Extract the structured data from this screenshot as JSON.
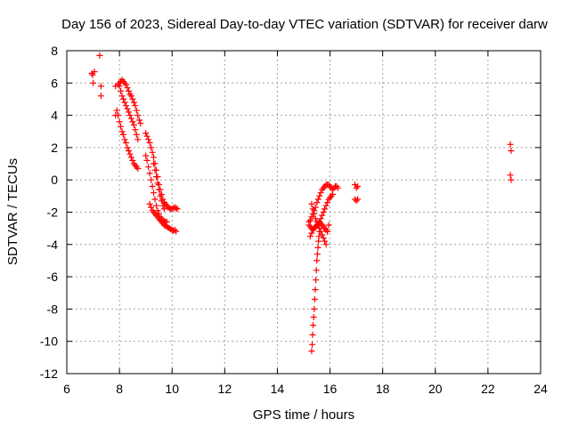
{
  "chart_data": {
    "type": "scatter",
    "title": "Day 156 of 2023, Sidereal Day-to-day VTEC variation (SDTVAR) for receiver darw",
    "xlabel": "GPS time / hours",
    "ylabel": "SDTVAR / TECUs",
    "xlim": [
      6,
      24
    ],
    "ylim": [
      -12,
      8
    ],
    "xticks": [
      "6",
      "8",
      "10",
      "12",
      "14",
      "16",
      "18",
      "20",
      "22",
      "24"
    ],
    "yticks": [
      "-12",
      "-10",
      "-8",
      "-6",
      "-4",
      "-2",
      "0",
      "2",
      "4",
      "6",
      "8"
    ],
    "grid": true,
    "marker": "+",
    "color": "#ff0000",
    "series": [
      {
        "name": "SDTVAR",
        "x": [
          6.95,
          6.98,
          7.0,
          7.05,
          7.25,
          7.3,
          7.3,
          7.85,
          7.95,
          8.0,
          8.05,
          8.1,
          8.15,
          8.2,
          8.25,
          8.3,
          8.35,
          8.4,
          8.45,
          8.5,
          8.55,
          8.6,
          8.65,
          8.7,
          8.75,
          8.8,
          7.85,
          7.9,
          7.95,
          8.0,
          8.05,
          8.1,
          8.15,
          8.2,
          8.25,
          8.3,
          8.35,
          8.4,
          8.45,
          8.5,
          8.55,
          8.6,
          8.65,
          8.7,
          8.0,
          8.05,
          8.1,
          8.15,
          8.2,
          8.25,
          8.3,
          8.35,
          8.4,
          8.45,
          8.5,
          8.55,
          8.6,
          8.65,
          8.7,
          9.0,
          9.05,
          9.1,
          9.15,
          9.2,
          9.25,
          9.3,
          9.35,
          9.4,
          9.45,
          9.5,
          9.55,
          9.6,
          9.65,
          9.7,
          9.75,
          9.8,
          9.85,
          9.9,
          9.95,
          10.0,
          10.05,
          10.1,
          10.15,
          10.2,
          9.0,
          9.05,
          9.1,
          9.15,
          9.2,
          9.25,
          9.3,
          9.35,
          9.4,
          9.45,
          9.5,
          9.55,
          9.6,
          9.65,
          9.7,
          9.75,
          9.8,
          9.15,
          9.2,
          9.25,
          9.3,
          9.35,
          9.4,
          9.45,
          9.5,
          9.55,
          9.6,
          9.65,
          9.7,
          9.75,
          9.8,
          9.85,
          9.9,
          9.95,
          10.0,
          10.05,
          10.1,
          10.15,
          9.3,
          9.35,
          9.4,
          9.45,
          9.5,
          9.55,
          9.6,
          9.65,
          9.7,
          15.2,
          15.25,
          15.3,
          15.35,
          15.4,
          15.45,
          15.5,
          15.55,
          15.6,
          15.65,
          15.7,
          15.75,
          15.8,
          15.85,
          15.9,
          15.95,
          16.0,
          16.05,
          16.1,
          16.15,
          16.2,
          16.25,
          16.3,
          15.25,
          15.3,
          15.35,
          15.4,
          15.45,
          15.5,
          15.55,
          15.6,
          15.65,
          15.7,
          15.75,
          15.8,
          15.85,
          15.9,
          15.95,
          16.0,
          16.05,
          16.1,
          15.3,
          15.35,
          15.4,
          15.45,
          15.5,
          15.55,
          15.6,
          15.65,
          15.7,
          15.75,
          15.8,
          15.85,
          15.9,
          15.95,
          15.3,
          15.32,
          15.34,
          15.36,
          15.38,
          15.4,
          15.42,
          15.44,
          15.46,
          15.48,
          15.5,
          15.52,
          15.54,
          15.56,
          15.58,
          15.6,
          15.2,
          15.25,
          15.3,
          15.35,
          15.4,
          15.45,
          15.5,
          15.55,
          15.6,
          15.65,
          15.7,
          15.75,
          15.8,
          15.85,
          15.9,
          16.95,
          17.0,
          17.05,
          16.95,
          17.0,
          17.05,
          22.85,
          22.88,
          22.85,
          22.88
        ],
        "y": [
          6.6,
          6.5,
          6.0,
          6.7,
          7.7,
          5.8,
          5.2,
          5.8,
          5.9,
          6.0,
          6.1,
          6.2,
          6.1,
          6.0,
          5.9,
          5.7,
          5.5,
          5.3,
          5.2,
          5.0,
          4.8,
          4.6,
          4.3,
          4.0,
          3.7,
          3.5,
          4.0,
          4.3,
          4.0,
          3.6,
          3.3,
          3.0,
          2.8,
          2.5,
          2.3,
          2.0,
          1.8,
          1.6,
          1.4,
          1.2,
          1.0,
          0.9,
          0.8,
          0.7,
          5.8,
          5.5,
          5.2,
          5.0,
          4.8,
          4.6,
          4.4,
          4.2,
          4.0,
          3.8,
          3.6,
          3.4,
          3.1,
          2.8,
          2.5,
          2.9,
          2.7,
          2.5,
          2.3,
          2.0,
          1.7,
          1.4,
          1.0,
          0.6,
          0.2,
          -0.3,
          -0.6,
          -0.9,
          -1.2,
          -1.4,
          -1.5,
          -1.6,
          -1.7,
          -1.75,
          -1.8,
          -1.8,
          -1.75,
          -1.7,
          -1.75,
          -1.8,
          1.5,
          1.2,
          0.8,
          0.4,
          0.0,
          -0.4,
          -0.8,
          -1.2,
          -1.6,
          -1.9,
          -2.1,
          -2.3,
          -2.4,
          -2.5,
          -2.55,
          -2.6,
          -2.6,
          -1.5,
          -1.7,
          -1.9,
          -2.0,
          -2.1,
          -2.2,
          -2.3,
          -2.4,
          -2.5,
          -2.6,
          -2.7,
          -2.8,
          -2.85,
          -2.9,
          -2.95,
          -3.0,
          -3.05,
          -3.1,
          -3.15,
          -3.1,
          -3.2,
          1.0,
          0.6,
          0.2,
          -0.2,
          -0.6,
          -1.0,
          -1.3,
          -1.6,
          -1.8,
          -2.6,
          -2.5,
          -2.3,
          -2.1,
          -1.9,
          -1.7,
          -1.4,
          -1.2,
          -1.0,
          -0.8,
          -0.6,
          -0.5,
          -0.4,
          -0.3,
          -0.3,
          -0.3,
          -0.4,
          -0.5,
          -0.6,
          -0.5,
          -0.4,
          -0.4,
          -0.5,
          -3.5,
          -3.3,
          -3.1,
          -3.0,
          -2.9,
          -2.8,
          -2.7,
          -2.6,
          -2.4,
          -2.2,
          -2.0,
          -1.8,
          -1.6,
          -1.4,
          -1.2,
          -1.1,
          -1.0,
          -0.9,
          -1.5,
          -1.8,
          -2.1,
          -2.4,
          -2.6,
          -2.8,
          -3.0,
          -3.2,
          -3.4,
          -3.6,
          -3.8,
          -4.0,
          -3.2,
          -2.8,
          -10.6,
          -10.2,
          -9.6,
          -9.0,
          -8.5,
          -8.0,
          -7.4,
          -6.8,
          -6.2,
          -5.6,
          -5.0,
          -4.6,
          -4.2,
          -3.8,
          -3.5,
          -3.2,
          -2.8,
          -2.9,
          -3.0,
          -3.1,
          -3.0,
          -2.9,
          -2.8,
          -2.7,
          -2.6,
          -2.7,
          -2.8,
          -2.9,
          -3.0,
          -3.1,
          -3.2,
          -0.3,
          -0.5,
          -0.4,
          -1.2,
          -1.3,
          -1.2,
          2.2,
          1.8,
          0.3,
          0.0
        ]
      }
    ]
  }
}
